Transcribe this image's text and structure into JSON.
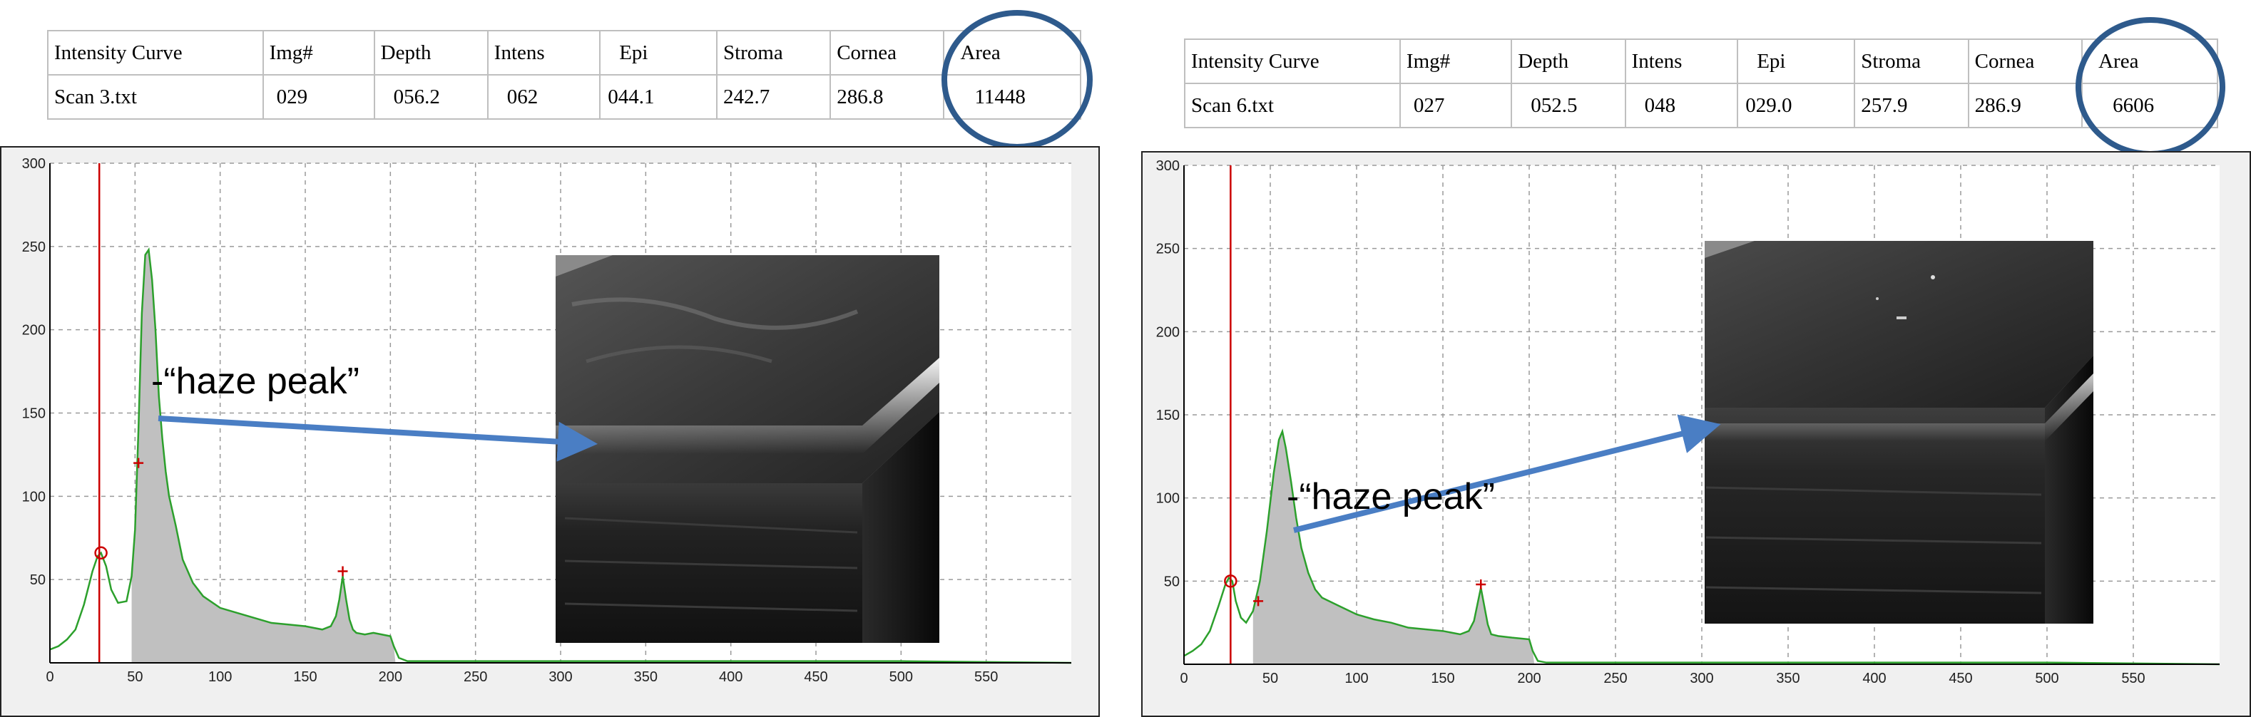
{
  "panels": [
    {
      "table": {
        "headers": [
          "Intensity Curve",
          "Img#",
          "Depth",
          "Intens",
          "Epi",
          "Stroma",
          "Cornea",
          "Area"
        ],
        "row": [
          "Scan 3.txt",
          "029",
          "056.2",
          "062",
          "044.1",
          "242.7",
          "286.8",
          "11448"
        ]
      },
      "annotation": "-“haze peak”"
    },
    {
      "table": {
        "headers": [
          "Intensity Curve",
          "Img#",
          "Depth",
          "Intens",
          "Epi",
          "Stroma",
          "Cornea",
          "Area"
        ],
        "row": [
          "Scan 6.txt",
          "027",
          "052.5",
          "048",
          "029.0",
          "257.9",
          "286.9",
          "6606"
        ]
      },
      "annotation": "-“haze peak”"
    }
  ],
  "colors": {
    "curve": "#2ca02c",
    "marker_line": "#cc0000",
    "fill": "#c0c0c0",
    "arrow": "#4a7ec4",
    "circle": "#2e5a8c"
  },
  "chart_data": [
    {
      "type": "line",
      "xlim": [
        0,
        600
      ],
      "ylim": [
        0,
        300
      ],
      "x_ticks": [
        0,
        50,
        100,
        150,
        200,
        250,
        300,
        350,
        400,
        450,
        500,
        550
      ],
      "y_ticks": [
        50,
        100,
        150,
        200,
        250,
        300
      ],
      "grid": true,
      "marker_x": 29,
      "shaded_range": [
        48,
        203
      ],
      "series": [
        {
          "x": [
            0,
            5,
            10,
            15,
            20,
            25,
            28,
            30,
            33,
            36,
            40,
            45,
            48,
            50,
            52,
            54,
            56,
            58,
            60,
            62,
            64,
            66,
            68,
            70,
            74,
            78,
            84,
            90,
            100,
            110,
            120,
            130,
            140,
            150,
            160,
            165,
            168,
            170,
            172,
            174,
            176,
            178,
            180,
            185,
            190,
            195,
            200,
            202,
            205,
            210,
            300,
            400,
            500,
            600
          ],
          "y": [
            8,
            10,
            14,
            20,
            35,
            55,
            64,
            66,
            58,
            44,
            36,
            37,
            52,
            80,
            140,
            210,
            245,
            248,
            230,
            200,
            160,
            135,
            115,
            100,
            82,
            62,
            48,
            40,
            33,
            30,
            27,
            24,
            23,
            22,
            20,
            22,
            28,
            38,
            52,
            38,
            26,
            20,
            18,
            17,
            18,
            17,
            16,
            10,
            3,
            1,
            1,
            1,
            1,
            0
          ]
        }
      ],
      "markers": [
        {
          "x": 30,
          "y": 66,
          "kind": "circle"
        },
        {
          "x": 52,
          "y": 120,
          "kind": "plus"
        },
        {
          "x": 172,
          "y": 55,
          "kind": "plus"
        }
      ]
    },
    {
      "type": "line",
      "xlim": [
        0,
        600
      ],
      "ylim": [
        0,
        300
      ],
      "x_ticks": [
        0,
        50,
        100,
        150,
        200,
        250,
        300,
        350,
        400,
        450,
        500,
        550
      ],
      "y_ticks": [
        50,
        100,
        150,
        200,
        250,
        300
      ],
      "grid": true,
      "marker_x": 27,
      "shaded_range": [
        40,
        203
      ],
      "series": [
        {
          "x": [
            0,
            5,
            10,
            15,
            20,
            24,
            26,
            28,
            30,
            33,
            36,
            40,
            44,
            48,
            52,
            55,
            57,
            59,
            62,
            65,
            68,
            72,
            76,
            80,
            90,
            100,
            110,
            120,
            130,
            140,
            150,
            160,
            165,
            168,
            170,
            172,
            174,
            176,
            178,
            182,
            190,
            200,
            202,
            205,
            210,
            300,
            400,
            500,
            600
          ],
          "y": [
            5,
            8,
            12,
            20,
            35,
            48,
            52,
            50,
            38,
            28,
            25,
            32,
            50,
            80,
            115,
            135,
            140,
            130,
            110,
            88,
            70,
            55,
            45,
            40,
            35,
            30,
            27,
            25,
            22,
            21,
            20,
            18,
            20,
            26,
            36,
            46,
            35,
            24,
            18,
            17,
            16,
            15,
            8,
            2,
            1,
            1,
            1,
            1,
            0
          ]
        }
      ],
      "markers": [
        {
          "x": 27,
          "y": 50,
          "kind": "circle"
        },
        {
          "x": 43,
          "y": 38,
          "kind": "plus"
        },
        {
          "x": 172,
          "y": 48,
          "kind": "plus"
        }
      ]
    }
  ]
}
